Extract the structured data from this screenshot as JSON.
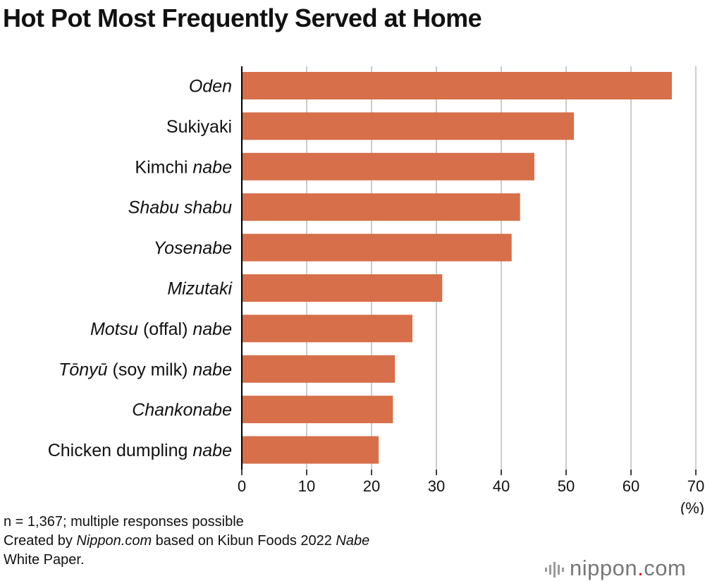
{
  "title": "Hot Pot Most Frequently Served at Home",
  "chart_data": {
    "type": "bar",
    "orientation": "horizontal",
    "categories": [
      [
        {
          "t": "Oden",
          "i": true
        }
      ],
      [
        {
          "t": "Sukiyaki",
          "i": false
        }
      ],
      [
        {
          "t": "Kimchi ",
          "i": false
        },
        {
          "t": "nabe",
          "i": true
        }
      ],
      [
        {
          "t": "Shabu shabu",
          "i": true
        }
      ],
      [
        {
          "t": "Yosenabe",
          "i": true
        }
      ],
      [
        {
          "t": "Mizutaki",
          "i": true
        }
      ],
      [
        {
          "t": "Motsu",
          "i": true
        },
        {
          "t": " (offal) ",
          "i": false
        },
        {
          "t": "nabe",
          "i": true
        }
      ],
      [
        {
          "t": "Tōnyū",
          "i": true
        },
        {
          "t": " (soy milk) ",
          "i": false
        },
        {
          "t": "nabe",
          "i": true
        }
      ],
      [
        {
          "t": "Chankonabe",
          "i": true
        }
      ],
      [
        {
          "t": "Chicken dumpling ",
          "i": false
        },
        {
          "t": "nabe",
          "i": true
        }
      ]
    ],
    "values": [
      66.3,
      51.2,
      45.1,
      42.9,
      41.6,
      30.9,
      26.3,
      23.6,
      23.3,
      21.1
    ],
    "xlim": [
      0,
      70
    ],
    "xticks": [
      0,
      10,
      20,
      30,
      40,
      50,
      60,
      70
    ],
    "xunit": "(%)",
    "grid": true,
    "bar_color": "#d66f4a",
    "grid_color": "#cccccc"
  },
  "footnote": {
    "line1": "n = 1,367; multiple responses possible",
    "line2_pre": "Created by ",
    "line2_site": "Nippon.com",
    "line2_mid": " based on Kibun Foods 2022 ",
    "line2_nabe": "Nabe",
    "line3": "White Paper."
  },
  "logo": {
    "text_a": "nippon",
    "text_dot": ".",
    "text_b": "com",
    "icon": "sound-wave-icon",
    "dot_color": "#e2001a"
  }
}
